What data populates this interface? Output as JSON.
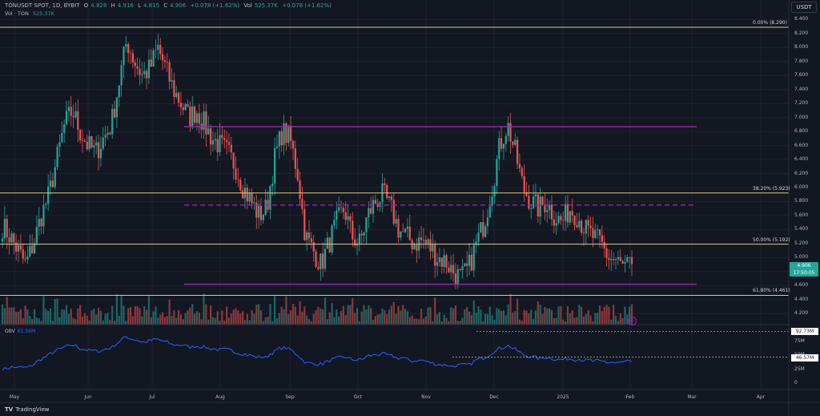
{
  "header": {
    "symbol": "TONUSDT SPOT, 1D, BYBIT",
    "o_label": "O",
    "o_value": "4.828",
    "h_label": "H",
    "h_value": "4.916",
    "l_label": "L",
    "l_value": "4.815",
    "c_label": "C",
    "c_value": "4.906",
    "change": "+0.078 (+1.62%)",
    "vol_label": "Vol",
    "vol_value": "525.37K",
    "vol_change": "+0.078 (+1.62%)",
    "vol_indicator": "Vol · TON",
    "vol_indicator_value": "525.37K"
  },
  "currency_button": "USDT",
  "price_axis": {
    "labels": [
      "8.400",
      "8.200",
      "8.000",
      "7.800",
      "7.600",
      "7.400",
      "7.200",
      "7.000",
      "6.800",
      "6.600",
      "6.400",
      "6.200",
      "6.000",
      "5.800",
      "5.600",
      "5.400",
      "5.200",
      "5.000",
      "4.800",
      "4.600",
      "4.400",
      "4.200"
    ]
  },
  "current_price": {
    "value": "4.906",
    "countdown": "17:50:05"
  },
  "fib_levels": [
    {
      "label": "0.00% (8.290)",
      "ratio": "0.00%",
      "price": 8.29
    },
    {
      "label": "38.20% (5.923)",
      "ratio": "38.20%",
      "price": 5.923
    },
    {
      "label": "50.00% (5.192)",
      "ratio": "50.00%",
      "price": 5.192
    },
    {
      "label": "61.80% (4.461)",
      "ratio": "61.80%",
      "price": 4.461
    }
  ],
  "range_lines": [
    {
      "name": "range-high",
      "price": 6.87
    },
    {
      "name": "range-mid",
      "price": 5.75
    },
    {
      "name": "range-low",
      "price": 4.62
    }
  ],
  "time_axis": [
    "May",
    "Jun",
    "Jul",
    "Aug",
    "Sep",
    "Oct",
    "Nov",
    "Dec",
    "2025",
    "Feb",
    "Mar",
    "Apr"
  ],
  "obv": {
    "label": "OBV",
    "value": "61.56M",
    "axis_labels": [
      "75M",
      "50M",
      "25M",
      "0"
    ],
    "tag_high": "92.73M",
    "tag_low": "46.57M"
  },
  "footer": {
    "brand": "TradingView",
    "logo": "tradingview-logo"
  },
  "colors": {
    "background": "#131722",
    "up": "#26a69a",
    "down": "#ef5350",
    "fib": "#d8c98a",
    "range": "#9c27b0",
    "obv": "#2962ff"
  },
  "chart_data": {
    "type": "candlestick",
    "note_series": "Daily TON/USDT candles, approx. May 2024 – end Jan 2025",
    "closes": [
      5.45,
      5.3,
      5.1,
      4.9,
      5.2,
      5.6,
      5.9,
      6.4,
      6.9,
      7.1,
      6.8,
      6.6,
      6.5,
      6.7,
      6.9,
      7.5,
      8.1,
      7.8,
      7.6,
      7.7,
      8.0,
      7.7,
      7.4,
      7.2,
      7.0,
      7.1,
      6.9,
      6.7,
      6.6,
      6.5,
      6.3,
      6.0,
      5.8,
      5.6,
      5.7,
      6.4,
      6.8,
      6.7,
      6.2,
      5.3,
      5.1,
      4.9,
      5.2,
      5.5,
      5.7,
      5.3,
      5.2,
      5.6,
      5.8,
      5.9,
      5.7,
      5.4,
      5.3,
      5.2,
      5.25,
      5.15,
      5.0,
      4.95,
      4.8,
      4.7,
      4.85,
      5.2,
      5.5,
      6.0,
      6.6,
      6.9,
      6.5,
      6.0,
      5.8,
      5.7,
      5.8,
      5.6,
      5.5,
      5.7,
      5.6,
      5.4,
      5.3,
      5.2,
      5.0,
      4.95,
      4.85,
      4.9
    ],
    "ylim": [
      4.1,
      8.45
    ],
    "obv_ylim": [
      0,
      95
    ]
  }
}
